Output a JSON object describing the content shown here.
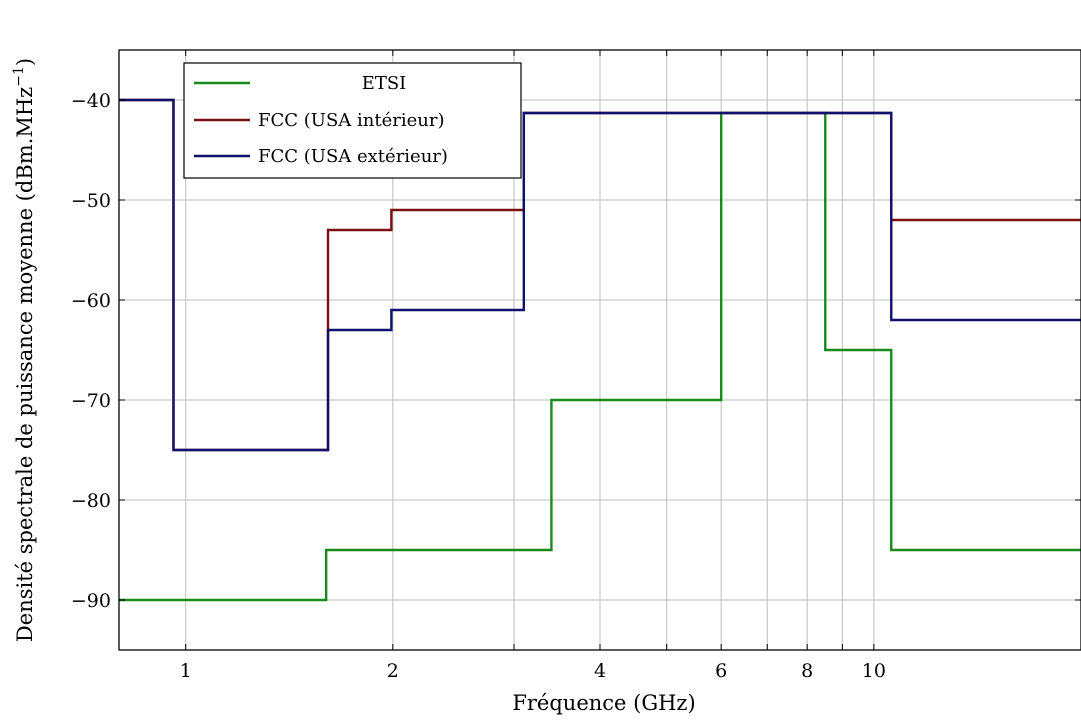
{
  "chart_data": {
    "type": "line",
    "step": true,
    "xscale": "log",
    "xlabel": "Fréquence (GHz)",
    "ylabel": "Densité spectrale de puissance moyenne (dBm.MHz",
    "ylabel_sup": "−1",
    "ylabel_close": ")",
    "xlim": [
      0.8,
      20
    ],
    "ylim": [
      -95,
      -35
    ],
    "xticks": [
      1,
      2,
      4,
      6,
      8,
      10
    ],
    "xtick_labels": [
      "1",
      "2",
      "4",
      "6",
      "8",
      "10"
    ],
    "minor_xgrid": [
      3,
      5,
      7,
      9
    ],
    "yticks": [
      -40,
      -50,
      -60,
      -70,
      -80,
      -90
    ],
    "ytick_labels": [
      "−40",
      "−50",
      "−60",
      "−70",
      "−80",
      "−90"
    ],
    "grid": true,
    "legend_position": "top-left",
    "series": [
      {
        "name": "ETSI",
        "color": "#1a8a1a",
        "x": [
          0.8,
          1.6,
          1.6,
          3.4,
          3.4,
          6.0,
          6.0,
          8.5,
          8.5,
          10.6,
          10.6,
          20
        ],
        "y": [
          -90,
          -90,
          -85,
          -85,
          -70,
          -70,
          -41.3,
          -41.3,
          -65,
          -65,
          -85,
          -85
        ]
      },
      {
        "name": "FCC (USA intérieur)",
        "color": "#7a1010",
        "x": [
          0.8,
          0.96,
          0.96,
          1.61,
          1.61,
          1.99,
          1.99,
          3.1,
          3.1,
          10.6,
          10.6,
          20
        ],
        "y": [
          -40,
          -40,
          -75,
          -75,
          -53,
          -53,
          -51,
          -51,
          -41.3,
          -41.3,
          -52,
          -52
        ]
      },
      {
        "name": "FCC (USA extérieur)",
        "color": "#10106e",
        "x": [
          0.8,
          0.96,
          0.96,
          1.61,
          1.61,
          1.99,
          1.99,
          3.1,
          3.1,
          10.6,
          10.6,
          20
        ],
        "y": [
          -40,
          -40,
          -75,
          -75,
          -63,
          -63,
          -61,
          -61,
          -41.3,
          -41.3,
          -62,
          -62
        ]
      }
    ]
  }
}
